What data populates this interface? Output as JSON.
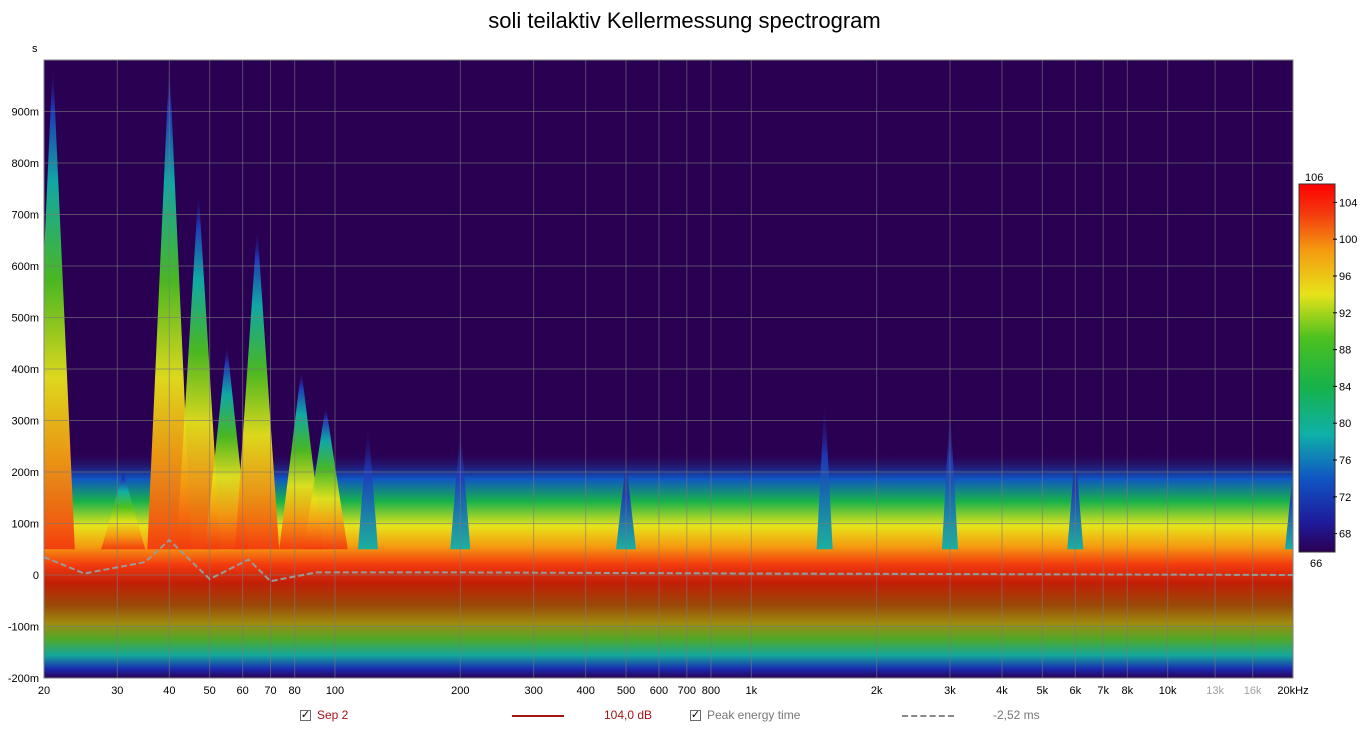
{
  "chart_data": {
    "type": "heatmap",
    "title": "soli teilaktiv Kellermessung spectrogram",
    "y_unit": "s",
    "x_scale": "log",
    "x_range_hz": [
      20,
      20000
    ],
    "y_range_s": [
      -0.2,
      1.0
    ],
    "grid": true,
    "x_ticks": [
      {
        "value": 20,
        "label": "20"
      },
      {
        "value": 30,
        "label": "30"
      },
      {
        "value": 40,
        "label": "40"
      },
      {
        "value": 50,
        "label": "50"
      },
      {
        "value": 60,
        "label": "60"
      },
      {
        "value": 70,
        "label": "70"
      },
      {
        "value": 80,
        "label": "80"
      },
      {
        "value": 100,
        "label": "100"
      },
      {
        "value": 200,
        "label": "200"
      },
      {
        "value": 300,
        "label": "300"
      },
      {
        "value": 400,
        "label": "400"
      },
      {
        "value": 500,
        "label": "500"
      },
      {
        "value": 600,
        "label": "600"
      },
      {
        "value": 700,
        "label": "700"
      },
      {
        "value": 800,
        "label": "800"
      },
      {
        "value": 1000,
        "label": "1k"
      },
      {
        "value": 2000,
        "label": "2k"
      },
      {
        "value": 3000,
        "label": "3k"
      },
      {
        "value": 4000,
        "label": "4k"
      },
      {
        "value": 5000,
        "label": "5k"
      },
      {
        "value": 6000,
        "label": "6k"
      },
      {
        "value": 7000,
        "label": "7k"
      },
      {
        "value": 8000,
        "label": "8k"
      },
      {
        "value": 10000,
        "label": "10k"
      },
      {
        "value": 13000,
        "label": "13k",
        "faded": true
      },
      {
        "value": 16000,
        "label": "16k",
        "faded": true
      },
      {
        "value": 20000,
        "label": "20kHz"
      }
    ],
    "y_ticks": [
      {
        "value": 0.9,
        "label": "900m"
      },
      {
        "value": 0.8,
        "label": "800m"
      },
      {
        "value": 0.7,
        "label": "700m"
      },
      {
        "value": 0.6,
        "label": "600m"
      },
      {
        "value": 0.5,
        "label": "500m"
      },
      {
        "value": 0.4,
        "label": "400m"
      },
      {
        "value": 0.3,
        "label": "300m"
      },
      {
        "value": 0.2,
        "label": "200m"
      },
      {
        "value": 0.1,
        "label": "100m"
      },
      {
        "value": 0.0,
        "label": "0"
      },
      {
        "value": -0.1,
        "label": "-100m"
      },
      {
        "value": -0.2,
        "label": "-200m"
      }
    ],
    "colorbar": {
      "min": 66,
      "max": 106,
      "ticks": [
        104,
        100,
        96,
        92,
        88,
        84,
        80,
        76,
        72,
        68
      ],
      "top_label": "106",
      "bottom_label": "66"
    },
    "decay_peaks_s": [
      {
        "f": 21,
        "t": 1.0
      },
      {
        "f": 31,
        "t": 0.2
      },
      {
        "f": 40,
        "t": 1.0
      },
      {
        "f": 47,
        "t": 0.75
      },
      {
        "f": 55,
        "t": 0.45
      },
      {
        "f": 65,
        "t": 0.68
      },
      {
        "f": 83,
        "t": 0.4
      },
      {
        "f": 95,
        "t": 0.33
      },
      {
        "f": 120,
        "t": 0.3
      },
      {
        "f": 200,
        "t": 0.29
      },
      {
        "f": 500,
        "t": 0.22
      },
      {
        "f": 1500,
        "t": 0.35
      },
      {
        "f": 3000,
        "t": 0.33
      },
      {
        "f": 6000,
        "t": 0.24
      },
      {
        "f": 20000,
        "t": 0.2
      }
    ],
    "peak_energy_time_s": [
      {
        "f": 20,
        "t": 0.035
      },
      {
        "f": 25,
        "t": 0.003
      },
      {
        "f": 35,
        "t": 0.025
      },
      {
        "f": 40,
        "t": 0.068
      },
      {
        "f": 50,
        "t": -0.008
      },
      {
        "f": 62,
        "t": 0.03
      },
      {
        "f": 70,
        "t": -0.012
      },
      {
        "f": 90,
        "t": 0.005
      },
      {
        "f": 200,
        "t": 0.005
      },
      {
        "f": 1000,
        "t": 0.003
      },
      {
        "f": 20000,
        "t": 0.0
      }
    ]
  },
  "legend": {
    "series_name": "Sep 2",
    "series_color": "#a11414",
    "series_value": "104,0 dB",
    "peak_label": "Peak energy time",
    "peak_value": "-2,52 ms"
  },
  "icons": {
    "checkbox": "checkmark-icon"
  }
}
